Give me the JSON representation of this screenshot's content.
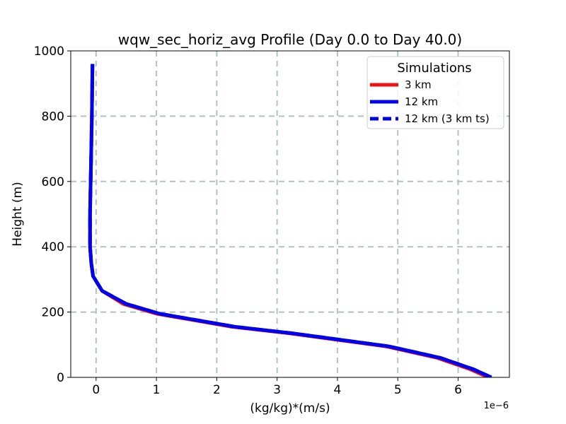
{
  "chart_data": {
    "type": "line",
    "title": "wqw_sec_horiz_avg Profile (Day 0.0 to Day 40.0)",
    "xlabel": "(kg/kg)*(m/s)",
    "ylabel": "Height (m)",
    "x_offset_label": "1e−6",
    "xlim": [
      -0.42,
      6.85
    ],
    "ylim": [
      0,
      1000
    ],
    "x_ticks": [
      0,
      1,
      2,
      3,
      4,
      5,
      6
    ],
    "x_tick_labels": [
      "0",
      "1",
      "2",
      "3",
      "4",
      "5",
      "6"
    ],
    "y_ticks": [
      0,
      200,
      400,
      600,
      800,
      1000
    ],
    "y_tick_labels": [
      "0",
      "200",
      "400",
      "600",
      "800",
      "1000"
    ],
    "grid": true,
    "legend": {
      "title": "Simulations",
      "placement": "top-right",
      "entries": [
        "3 km",
        "12 km",
        "12 km (3 km ts)"
      ]
    },
    "series": [
      {
        "name": "3 km",
        "color": "#ee1111",
        "style": "solid",
        "x": [
          6.5,
          6.2,
          5.65,
          4.8,
          4.0,
          3.2,
          2.25,
          1.0,
          0.45,
          0.1,
          -0.05,
          -0.08,
          -0.1,
          -0.1,
          -0.09,
          -0.08,
          -0.07,
          -0.06
        ],
        "y": [
          0,
          25,
          60,
          95,
          115,
          135,
          155,
          195,
          225,
          265,
          310,
          350,
          400,
          500,
          600,
          700,
          800,
          960
        ]
      },
      {
        "name": "12 km",
        "color": "#0000ee",
        "style": "solid",
        "x": [
          6.55,
          6.25,
          5.7,
          4.85,
          4.05,
          3.25,
          2.3,
          1.05,
          0.5,
          0.1,
          -0.05,
          -0.08,
          -0.1,
          -0.1,
          -0.09,
          -0.08,
          -0.07,
          -0.06
        ],
        "y": [
          0,
          25,
          60,
          95,
          115,
          135,
          155,
          195,
          225,
          265,
          310,
          350,
          400,
          500,
          600,
          700,
          800,
          960
        ]
      },
      {
        "name": "12 km (3 km ts)",
        "color": "#0000ee",
        "style": "dashed",
        "x": [
          6.55,
          6.25,
          5.7,
          4.85,
          4.05,
          3.25,
          2.3,
          1.05,
          0.5,
          0.1,
          -0.05,
          -0.08,
          -0.1,
          -0.1,
          -0.09,
          -0.08,
          -0.07,
          -0.06
        ],
        "y": [
          0,
          25,
          60,
          95,
          115,
          135,
          155,
          195,
          225,
          265,
          310,
          350,
          400,
          500,
          600,
          700,
          800,
          960
        ]
      }
    ]
  }
}
